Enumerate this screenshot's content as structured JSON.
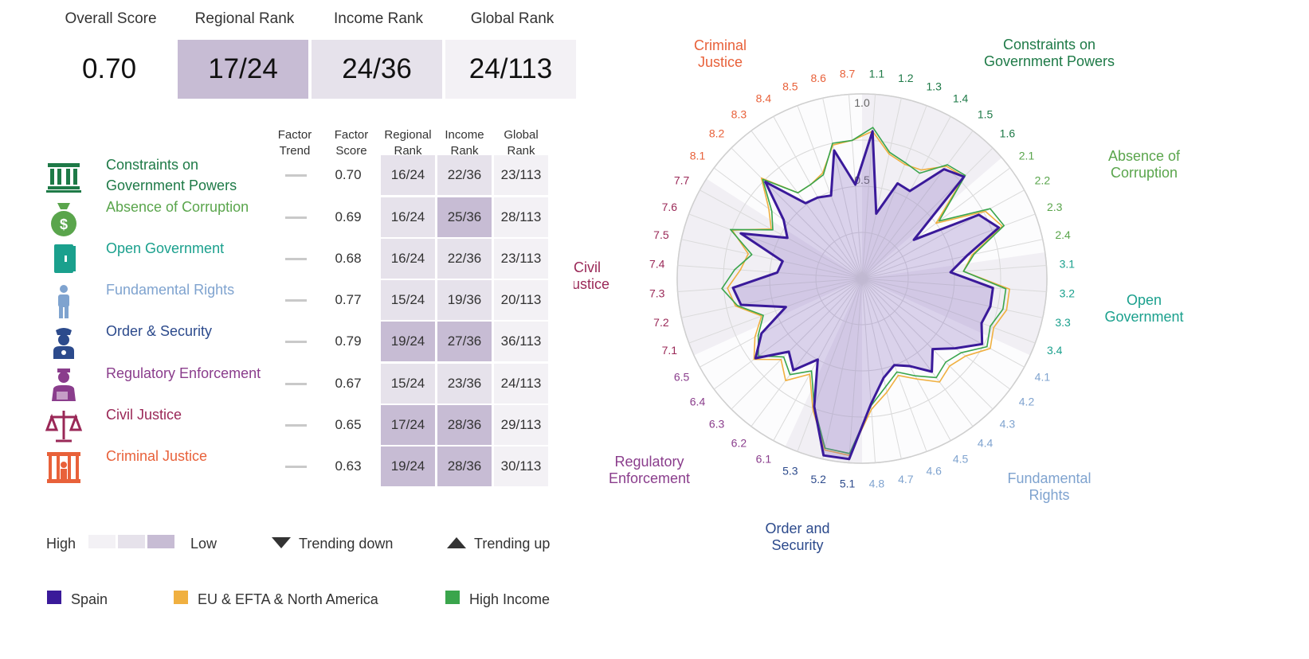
{
  "summary": {
    "labels": {
      "overall": "Overall Score",
      "regional": "Regional Rank",
      "income": "Income Rank",
      "global": "Global Rank"
    },
    "values": {
      "overall": "0.70",
      "regional": "17/24",
      "income": "24/36",
      "global": "24/113"
    }
  },
  "table_headers": {
    "trend": [
      "Factor",
      "Trend"
    ],
    "score": [
      "Factor",
      "Score"
    ],
    "regional": [
      "Regional",
      "Rank"
    ],
    "income": [
      "Income",
      "Rank"
    ],
    "global": [
      "Global",
      "Rank"
    ]
  },
  "factors": [
    {
      "name": "Constraints on Government Powers",
      "icon": "columns-icon",
      "color": "#1e7a47",
      "score": "0.70",
      "regional": "16/24",
      "income": "22/36",
      "global": "23/113",
      "regional_shade": "mid",
      "income_shade": "mid",
      "global_shade": "light"
    },
    {
      "name": "Absence of Corruption",
      "icon": "money-bag-icon",
      "color": "#5aa54c",
      "score": "0.69",
      "regional": "16/24",
      "income": "25/36",
      "global": "28/113",
      "regional_shade": "mid",
      "income_shade": "dark",
      "global_shade": "light"
    },
    {
      "name": "Open Government",
      "icon": "door-icon",
      "color": "#1aa08d",
      "score": "0.68",
      "regional": "16/24",
      "income": "22/36",
      "global": "23/113",
      "regional_shade": "mid",
      "income_shade": "mid",
      "global_shade": "light"
    },
    {
      "name": "Fundamental Rights",
      "icon": "person-icon",
      "color": "#7fa3cf",
      "score": "0.77",
      "regional": "15/24",
      "income": "19/36",
      "global": "20/113",
      "regional_shade": "mid",
      "income_shade": "mid",
      "global_shade": "light"
    },
    {
      "name": "Order & Security",
      "icon": "police-icon",
      "color": "#2c4a8c",
      "score": "0.79",
      "regional": "19/24",
      "income": "27/36",
      "global": "36/113",
      "regional_shade": "dark",
      "income_shade": "dark",
      "global_shade": "light"
    },
    {
      "name": "Regulatory Enforcement",
      "icon": "inspector-icon",
      "color": "#8a3d8c",
      "score": "0.67",
      "regional": "15/24",
      "income": "23/36",
      "global": "24/113",
      "regional_shade": "mid",
      "income_shade": "mid",
      "global_shade": "light"
    },
    {
      "name": "Civil Justice",
      "icon": "scales-icon",
      "color": "#9a2857",
      "score": "0.65",
      "regional": "17/24",
      "income": "28/36",
      "global": "29/113",
      "regional_shade": "dark",
      "income_shade": "dark",
      "global_shade": "light"
    },
    {
      "name": "Criminal Justice",
      "icon": "jail-icon",
      "color": "#e8613a",
      "score": "0.63",
      "regional": "19/24",
      "income": "28/36",
      "global": "30/113",
      "regional_shade": "dark",
      "income_shade": "dark",
      "global_shade": "light"
    }
  ],
  "legend": {
    "high": "High",
    "low": "Low",
    "trend_down": "Trending down",
    "trend_up": "Trending up",
    "series": [
      {
        "name": "Spain",
        "color": "#3a1a9a"
      },
      {
        "name": "EU & EFTA & North America",
        "color": "#f0b040"
      },
      {
        "name": "High Income",
        "color": "#3aa54c"
      }
    ]
  },
  "colors": {
    "shade_light": "#f3f1f5",
    "shade_mid": "#e6e2eb",
    "shade_dark": "#c7bcd4"
  },
  "chart_data": {
    "type": "radar",
    "r_ticks": [
      "0.5",
      "1.0"
    ],
    "r_range": [
      0,
      1
    ],
    "group_labels": [
      {
        "text": "Constraints on Government Powers",
        "lines": [
          "Constraints on",
          "Government Powers"
        ],
        "color": "#1e7a47"
      },
      {
        "text": "Absence of Corruption",
        "lines": [
          "Absence of",
          "Corruption"
        ],
        "color": "#5aa54c"
      },
      {
        "text": "Open Government",
        "lines": [
          "Open",
          "Government"
        ],
        "color": "#1aa08d"
      },
      {
        "text": "Fundamental Rights",
        "lines": [
          "Fundamental",
          "Rights"
        ],
        "color": "#7fa3cf"
      },
      {
        "text": "Order and Security",
        "lines": [
          "Order and",
          "Security"
        ],
        "color": "#2c4a8c"
      },
      {
        "text": "Regulatory Enforcement",
        "lines": [
          "Regulatory",
          "Enforcement"
        ],
        "color": "#8a3d8c"
      },
      {
        "text": "Civil Justice",
        "lines": [
          "Civil",
          "Justice"
        ],
        "color": "#9a2857"
      },
      {
        "text": "Criminal Justice",
        "lines": [
          "Criminal",
          "Justice"
        ],
        "color": "#e8613a"
      }
    ],
    "axes": [
      {
        "label": "1.1",
        "color": "#1e7a47"
      },
      {
        "label": "1.2",
        "color": "#1e7a47"
      },
      {
        "label": "1.3",
        "color": "#1e7a47"
      },
      {
        "label": "1.4",
        "color": "#1e7a47"
      },
      {
        "label": "1.5",
        "color": "#1e7a47"
      },
      {
        "label": "1.6",
        "color": "#1e7a47"
      },
      {
        "label": "2.1",
        "color": "#5aa54c"
      },
      {
        "label": "2.2",
        "color": "#5aa54c"
      },
      {
        "label": "2.3",
        "color": "#5aa54c"
      },
      {
        "label": "2.4",
        "color": "#5aa54c"
      },
      {
        "label": "3.1",
        "color": "#1aa08d"
      },
      {
        "label": "3.2",
        "color": "#1aa08d"
      },
      {
        "label": "3.3",
        "color": "#1aa08d"
      },
      {
        "label": "3.4",
        "color": "#1aa08d"
      },
      {
        "label": "4.1",
        "color": "#7fa3cf"
      },
      {
        "label": "4.2",
        "color": "#7fa3cf"
      },
      {
        "label": "4.3",
        "color": "#7fa3cf"
      },
      {
        "label": "4.4",
        "color": "#7fa3cf"
      },
      {
        "label": "4.5",
        "color": "#7fa3cf"
      },
      {
        "label": "4.6",
        "color": "#7fa3cf"
      },
      {
        "label": "4.7",
        "color": "#7fa3cf"
      },
      {
        "label": "4.8",
        "color": "#7fa3cf"
      },
      {
        "label": "5.1",
        "color": "#2c4a8c"
      },
      {
        "label": "5.2",
        "color": "#2c4a8c"
      },
      {
        "label": "5.3",
        "color": "#2c4a8c"
      },
      {
        "label": "6.1",
        "color": "#8a3d8c"
      },
      {
        "label": "6.2",
        "color": "#8a3d8c"
      },
      {
        "label": "6.3",
        "color": "#8a3d8c"
      },
      {
        "label": "6.4",
        "color": "#8a3d8c"
      },
      {
        "label": "6.5",
        "color": "#8a3d8c"
      },
      {
        "label": "7.1",
        "color": "#9a2857"
      },
      {
        "label": "7.2",
        "color": "#9a2857"
      },
      {
        "label": "7.3",
        "color": "#9a2857"
      },
      {
        "label": "7.4",
        "color": "#9a2857"
      },
      {
        "label": "7.5",
        "color": "#9a2857"
      },
      {
        "label": "7.6",
        "color": "#9a2857"
      },
      {
        "label": "7.7",
        "color": "#9a2857"
      },
      {
        "label": "8.1",
        "color": "#e8613a"
      },
      {
        "label": "8.2",
        "color": "#e8613a"
      },
      {
        "label": "8.3",
        "color": "#e8613a"
      },
      {
        "label": "8.4",
        "color": "#e8613a"
      },
      {
        "label": "8.5",
        "color": "#e8613a"
      },
      {
        "label": "8.6",
        "color": "#e8613a"
      },
      {
        "label": "8.7",
        "color": "#e8613a"
      }
    ],
    "series": [
      {
        "name": "Spain",
        "color": "#3a1a9a",
        "values": [
          0.8,
          0.36,
          0.55,
          0.54,
          0.74,
          0.78,
          0.35,
          0.72,
          0.79,
          0.58,
          0.48,
          0.71,
          0.71,
          0.69,
          0.74,
          0.63,
          0.54,
          0.63,
          0.54,
          0.5,
          0.55,
          0.68,
          0.98,
          0.98,
          0.74,
          0.5,
          0.62,
          0.56,
          0.72,
          0.62,
          0.44,
          0.67,
          0.7,
          0.46,
          0.44,
          0.7,
          0.46,
          0.53,
          0.74,
          0.51,
          0.5,
          0.48,
          0.71,
          0.51
        ]
      },
      {
        "name": "EU & EFTA & North America",
        "color": "#f0b040",
        "values": [
          0.8,
          0.69,
          0.66,
          0.67,
          0.76,
          0.78,
          0.5,
          0.76,
          0.81,
          0.61,
          0.55,
          0.8,
          0.8,
          0.76,
          0.79,
          0.7,
          0.67,
          0.7,
          0.62,
          0.56,
          0.63,
          0.71,
          0.96,
          0.95,
          0.76,
          0.59,
          0.69,
          0.62,
          0.73,
          0.66,
          0.58,
          0.7,
          0.73,
          0.66,
          0.63,
          0.75,
          0.56,
          0.63,
          0.77,
          0.58,
          0.58,
          0.61,
          0.74,
          0.75
        ]
      },
      {
        "name": "High Income",
        "color": "#3aa54c",
        "values": [
          0.82,
          0.7,
          0.67,
          0.65,
          0.77,
          0.79,
          0.52,
          0.79,
          0.82,
          0.62,
          0.55,
          0.78,
          0.78,
          0.74,
          0.77,
          0.67,
          0.64,
          0.67,
          0.6,
          0.54,
          0.6,
          0.69,
          0.95,
          0.94,
          0.74,
          0.57,
          0.65,
          0.6,
          0.7,
          0.64,
          0.57,
          0.69,
          0.76,
          0.69,
          0.61,
          0.76,
          0.55,
          0.61,
          0.76,
          0.58,
          0.58,
          0.6,
          0.75,
          0.75
        ]
      }
    ]
  }
}
